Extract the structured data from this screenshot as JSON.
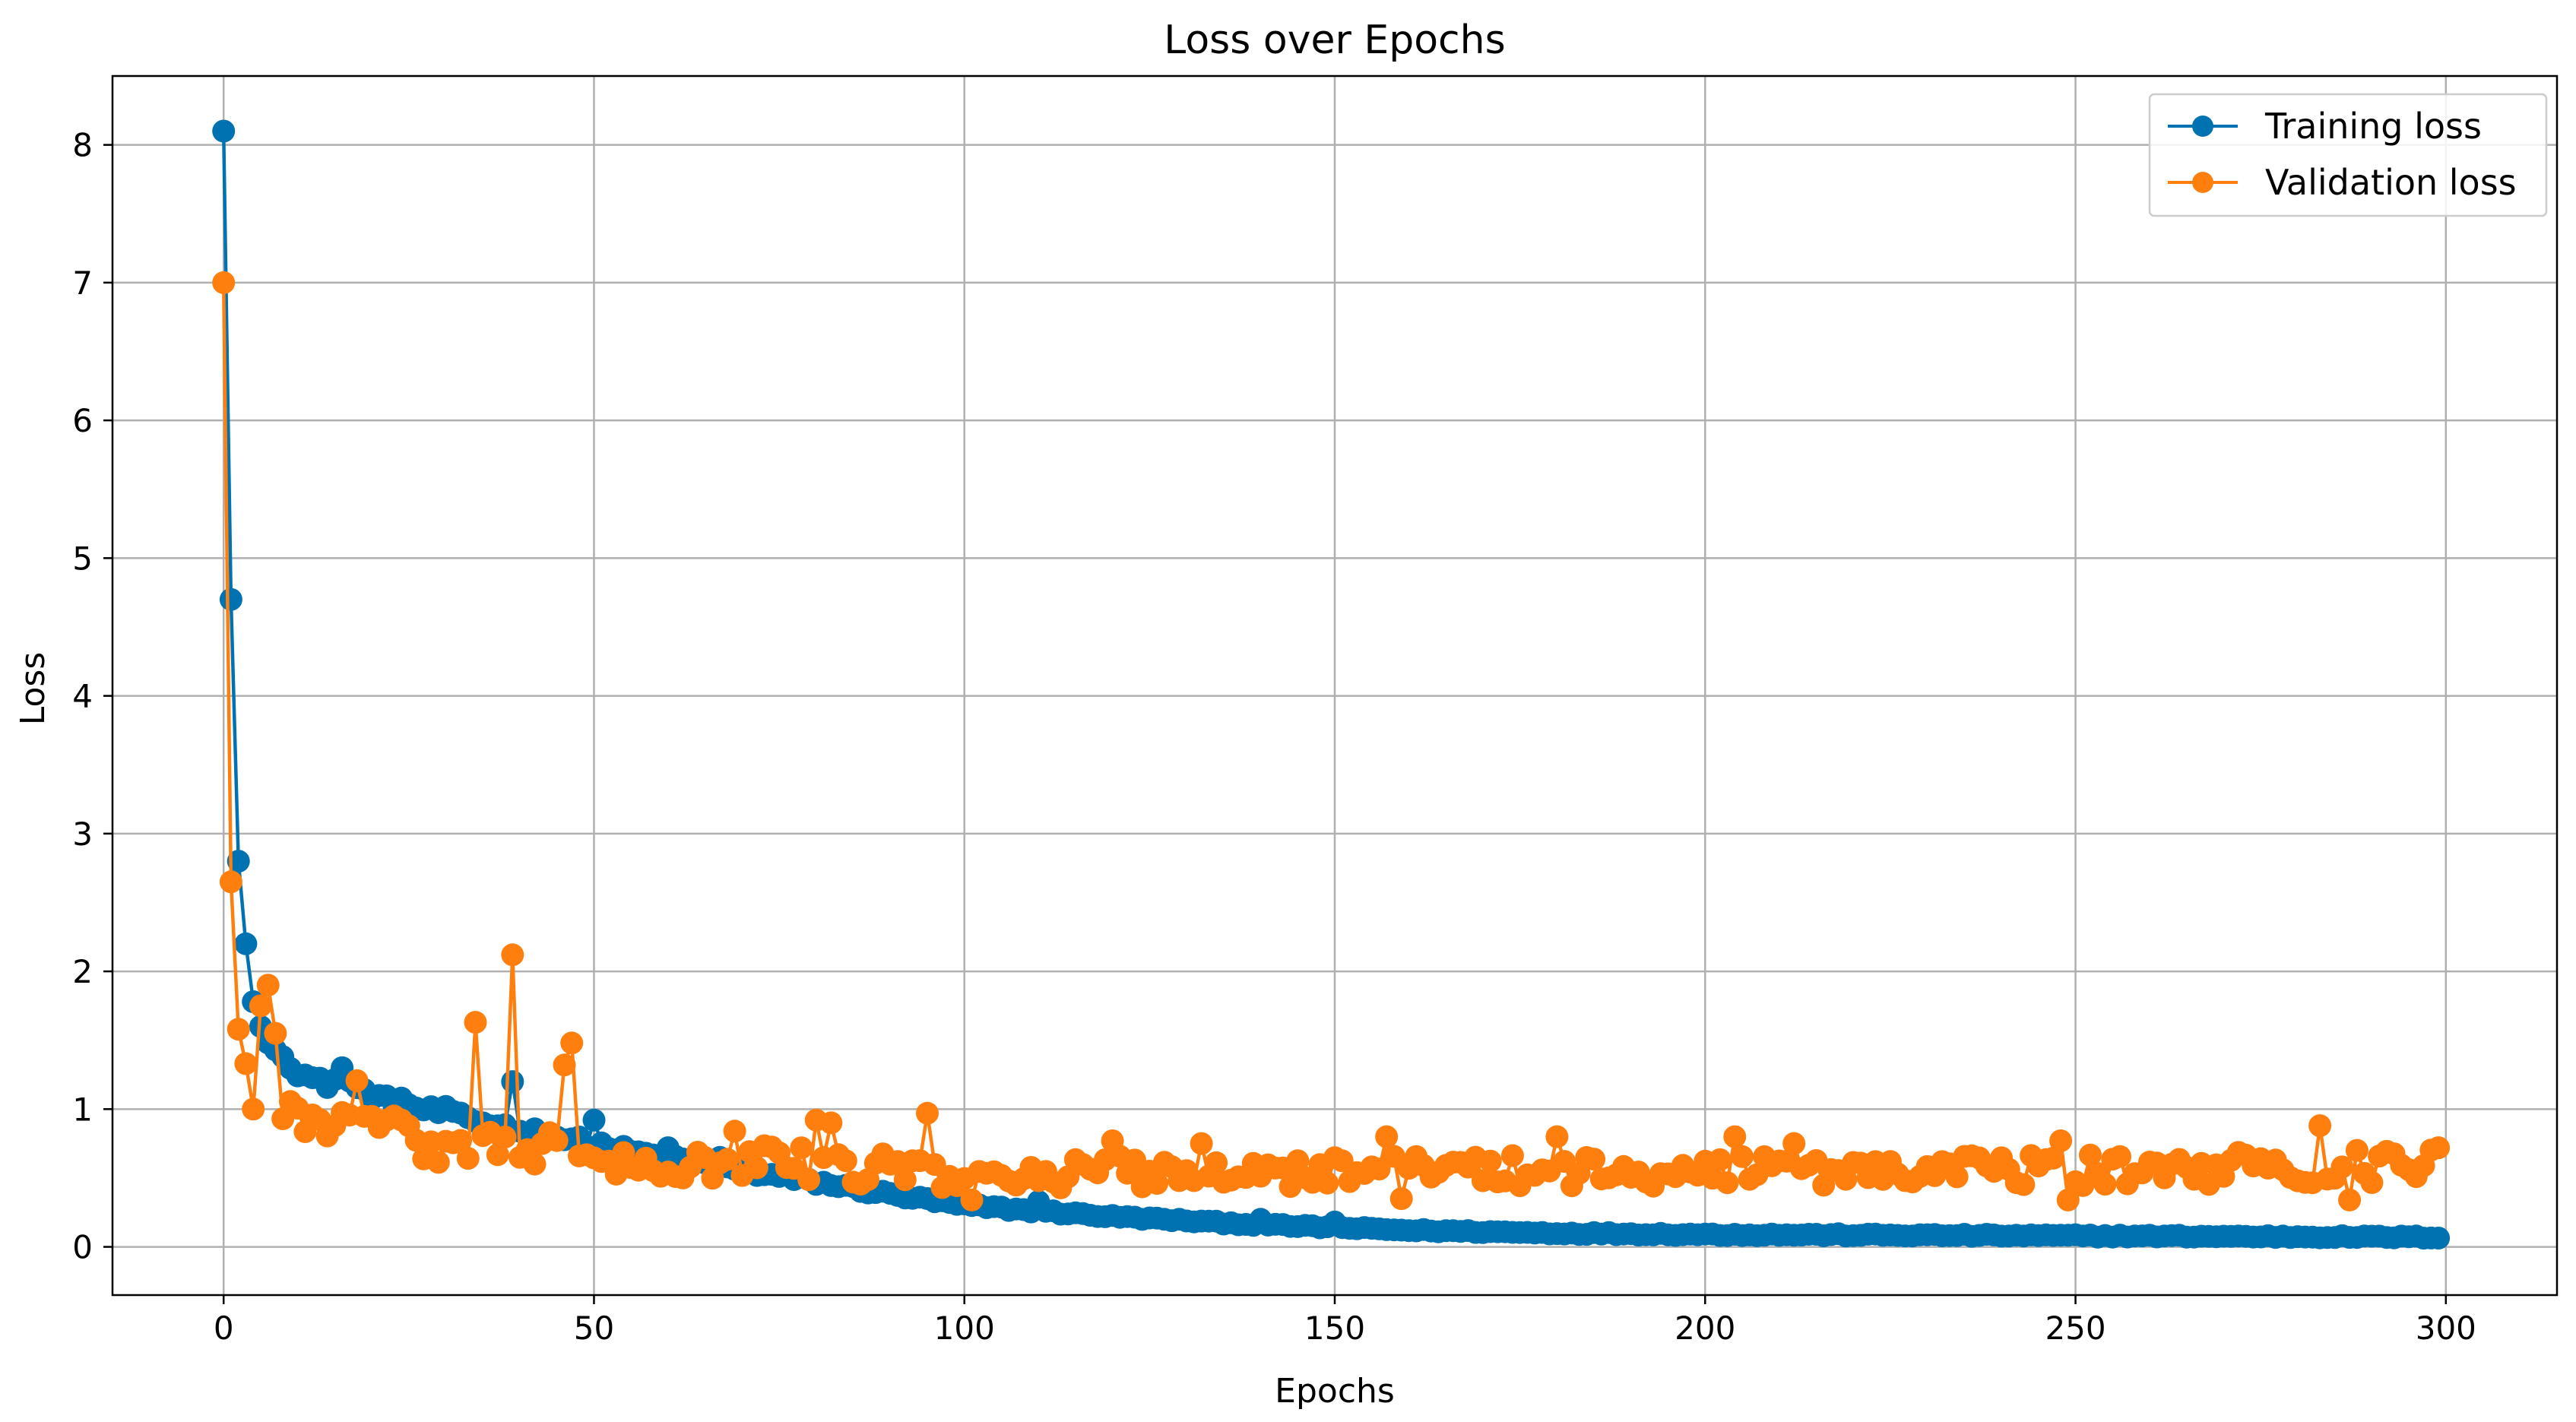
{
  "chart_data": {
    "type": "line",
    "title": "Loss over Epochs",
    "xlabel": "Epochs",
    "ylabel": "Loss",
    "xlim": [
      -15,
      315
    ],
    "ylim": [
      -0.35,
      8.5
    ],
    "xticks": [
      0,
      50,
      100,
      150,
      200,
      250,
      300
    ],
    "yticks": [
      0,
      1,
      2,
      3,
      4,
      5,
      6,
      7,
      8
    ],
    "grid": true,
    "legend_position": "top-right",
    "marker": "circle",
    "series": [
      {
        "name": "Training loss",
        "color": "#0072b2",
        "anchors": [
          [
            0,
            8.1
          ],
          [
            1,
            4.7
          ],
          [
            2,
            2.8
          ],
          [
            3,
            2.2
          ],
          [
            4,
            1.78
          ],
          [
            5,
            1.6
          ],
          [
            6,
            1.48
          ],
          [
            8,
            1.38
          ],
          [
            10,
            1.27
          ],
          [
            12,
            1.22
          ],
          [
            14,
            1.18
          ],
          [
            16,
            1.25
          ],
          [
            18,
            1.15
          ],
          [
            20,
            1.1
          ],
          [
            25,
            1.02
          ],
          [
            30,
            0.97
          ],
          [
            35,
            0.9
          ],
          [
            40,
            0.86
          ],
          [
            45,
            0.8
          ],
          [
            50,
            0.75
          ],
          [
            55,
            0.69
          ],
          [
            60,
            0.64
          ],
          [
            70,
            0.55
          ],
          [
            80,
            0.47
          ],
          [
            90,
            0.38
          ],
          [
            100,
            0.3
          ],
          [
            110,
            0.26
          ],
          [
            120,
            0.22
          ],
          [
            130,
            0.19
          ],
          [
            140,
            0.16
          ],
          [
            150,
            0.14
          ],
          [
            160,
            0.12
          ],
          [
            170,
            0.11
          ],
          [
            180,
            0.1
          ],
          [
            200,
            0.09
          ],
          [
            250,
            0.08
          ],
          [
            300,
            0.07
          ]
        ],
        "spikes": [
          [
            16,
            1.3
          ],
          [
            24,
            1.08
          ],
          [
            30,
            1.02
          ],
          [
            39,
            1.2
          ],
          [
            50,
            0.92
          ],
          [
            60,
            0.72
          ],
          [
            64,
            0.68
          ],
          [
            67,
            0.65
          ],
          [
            110,
            0.33
          ],
          [
            140,
            0.2
          ],
          [
            150,
            0.18
          ]
        ],
        "noise": 0.03
      },
      {
        "name": "Validation loss",
        "color": "#ff7f0e",
        "anchors": [
          [
            0,
            7.0
          ],
          [
            1,
            2.65
          ],
          [
            2,
            1.58
          ],
          [
            3,
            1.33
          ],
          [
            4,
            1.0
          ],
          [
            5,
            1.75
          ],
          [
            6,
            1.9
          ],
          [
            7,
            1.55
          ],
          [
            8,
            0.93
          ],
          [
            10,
            0.98
          ],
          [
            12,
            0.88
          ],
          [
            15,
            0.95
          ],
          [
            18,
            1.15
          ],
          [
            20,
            0.98
          ],
          [
            25,
            0.8
          ],
          [
            28,
            0.68
          ],
          [
            30,
            0.7
          ],
          [
            35,
            0.78
          ],
          [
            40,
            0.7
          ],
          [
            45,
            0.75
          ],
          [
            48,
            0.65
          ],
          [
            50,
            0.62
          ],
          [
            55,
            0.6
          ],
          [
            60,
            0.62
          ],
          [
            70,
            0.62
          ],
          [
            80,
            0.6
          ],
          [
            90,
            0.55
          ],
          [
            100,
            0.5
          ],
          [
            110,
            0.5
          ],
          [
            120,
            0.55
          ],
          [
            150,
            0.55
          ],
          [
            200,
            0.55
          ],
          [
            250,
            0.55
          ],
          [
            300,
            0.6
          ]
        ],
        "spikes": [
          [
            34,
            1.63
          ],
          [
            39,
            2.12
          ],
          [
            46,
            1.32
          ],
          [
            47,
            1.48
          ],
          [
            69,
            0.84
          ],
          [
            80,
            0.92
          ],
          [
            82,
            0.9
          ],
          [
            95,
            0.97
          ],
          [
            120,
            0.77
          ],
          [
            132,
            0.75
          ],
          [
            157,
            0.8
          ],
          [
            180,
            0.8
          ],
          [
            204,
            0.8
          ],
          [
            212,
            0.75
          ],
          [
            248,
            0.77
          ],
          [
            283,
            0.88
          ],
          [
            299,
            0.72
          ],
          [
            101,
            0.34
          ],
          [
            159,
            0.35
          ],
          [
            249,
            0.34
          ],
          [
            287,
            0.34
          ]
        ],
        "noise": 0.13
      }
    ],
    "points_per_series": 300
  }
}
